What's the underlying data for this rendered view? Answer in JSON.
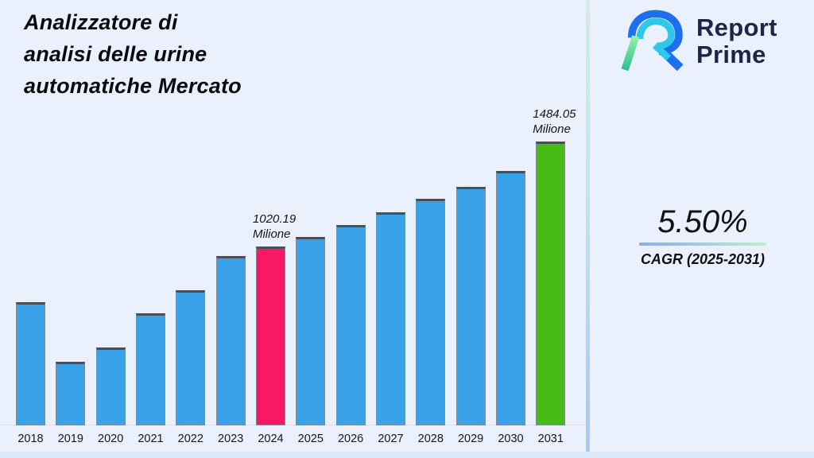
{
  "header": {
    "title_lines": [
      "Analizzatore di",
      "analisi delle urine",
      "automatiche Mercato"
    ]
  },
  "brand": {
    "name_line1": "Report",
    "name_line2": "Prime",
    "text_color": "#1b2746"
  },
  "cagr": {
    "value": "5.50%",
    "label": "CAGR (2025-2031)",
    "underline_gradient": [
      "#8cabf0",
      "#bfeec9"
    ]
  },
  "chart_data": {
    "type": "bar",
    "title": "Analizzatore di analisi delle urine automatiche Mercato",
    "unit": "Milione",
    "categories": [
      "2018",
      "2019",
      "2020",
      "2021",
      "2022",
      "2023",
      "2024",
      "2025",
      "2026",
      "2027",
      "2028",
      "2029",
      "2030",
      "2031"
    ],
    "values": [
      774,
      511,
      574,
      725,
      827,
      978,
      1020.19,
      1062,
      1115,
      1171,
      1231,
      1284,
      1354,
      1484.05
    ],
    "annotations": [
      {
        "category": "2024",
        "lines": [
          "1020.19",
          "Milione"
        ]
      },
      {
        "category": "2031",
        "lines": [
          "1484.05",
          "Milione"
        ]
      }
    ],
    "bar_colors": {
      "default": "#3aa2e8",
      "2024": "#f91863",
      "2031": "#49bb15"
    },
    "ylim": [
      229.5,
      1610
    ],
    "grid": false,
    "legend": false,
    "xlabel": "",
    "ylabel": ""
  },
  "colors": {
    "background": "#eaf1fc",
    "divider_gradient": [
      "#cfeedd",
      "#c2e3ee",
      "#a7c6f4"
    ],
    "baseline": "#dde3ec"
  }
}
